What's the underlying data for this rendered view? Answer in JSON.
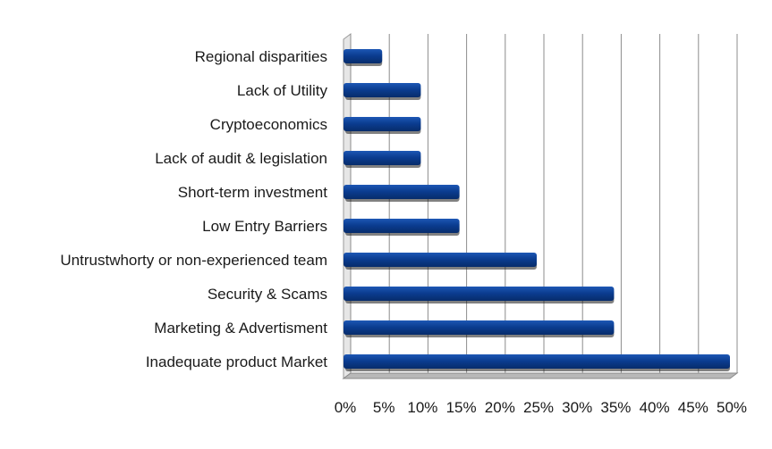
{
  "chart_data": {
    "type": "bar",
    "orientation": "horizontal",
    "title": "",
    "xlabel": "",
    "ylabel": "",
    "categories": [
      "Regional disparities",
      "Lack of Utility",
      "Cryptoeconomics",
      "Lack of audit & legislation",
      "Short-term investment",
      "Low Entry Barriers",
      "Untrustwhorty or non-experienced team",
      "Security & Scams",
      "Marketing & Advertisment",
      "Inadequate product Market"
    ],
    "values": [
      5,
      10,
      10,
      10,
      15,
      15,
      25,
      35,
      35,
      50
    ],
    "xlim": [
      0,
      50
    ],
    "ticks": [
      0,
      5,
      10,
      15,
      20,
      25,
      30,
      35,
      40,
      45,
      50
    ],
    "tick_labels": [
      "0%",
      "5%",
      "10%",
      "15%",
      "20%",
      "25%",
      "30%",
      "35%",
      "40%",
      "45%",
      "50%"
    ],
    "grid": true,
    "legend": "none",
    "bar_color": "#0b3d91"
  }
}
